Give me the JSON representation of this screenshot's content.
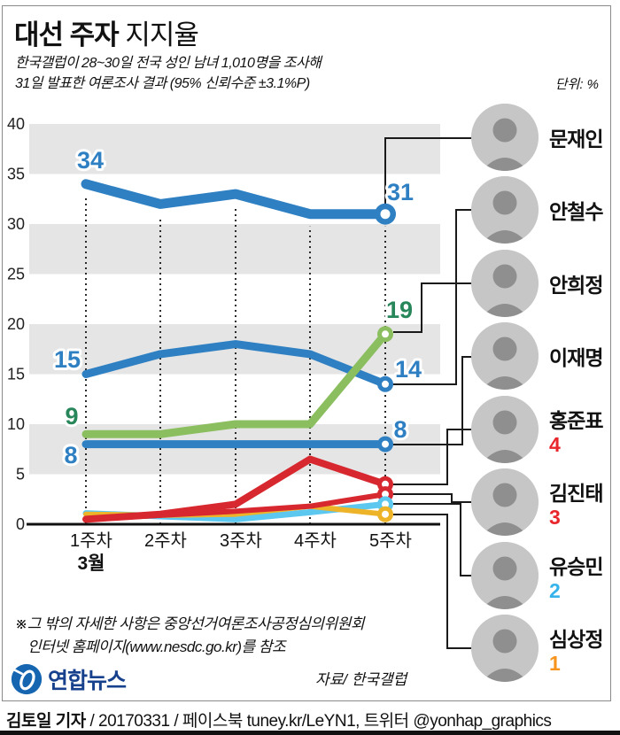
{
  "header": {
    "title_bold": "대선 주자",
    "title_light": "지지율",
    "subtitle_line1": "한국갤럽이 28~30일 전국 성인 남녀 1,010명을 조사해",
    "subtitle_line2": "31일 발표한 여론조사 결과 (95% 신뢰수준 ±3.1%P)",
    "unit": "단위: %"
  },
  "chart_data": {
    "type": "line",
    "unit": "%",
    "categories": [
      "1주차",
      "2주차",
      "3주차",
      "4주차",
      "5주차"
    ],
    "month_label": "3월",
    "ylim": [
      0,
      40
    ],
    "yticks": [
      0,
      5,
      10,
      15,
      20,
      25,
      30,
      35,
      40
    ],
    "series": [
      {
        "name": "문재인",
        "color": "#2E80C3",
        "values": [
          34,
          32,
          33,
          31,
          31
        ],
        "first_label": "34",
        "last_label": "31",
        "label_color": "#2E80C3"
      },
      {
        "name": "안철수",
        "color": "#2E80C3",
        "values": [
          15,
          17,
          18,
          17,
          14
        ],
        "first_label": "15",
        "last_label": "14",
        "label_color": "#2E80C3"
      },
      {
        "name": "안희정",
        "color": "#8BBE5F",
        "values": [
          9,
          9,
          10,
          10,
          19
        ],
        "first_label": "9",
        "last_label": "19",
        "label_color": "#27865A"
      },
      {
        "name": "이재명",
        "color": "#2E80C3",
        "values": [
          8,
          8,
          8,
          8,
          8
        ],
        "first_label": "8",
        "last_label": "8",
        "label_color": "#2E80C3"
      },
      {
        "name": "홍준표",
        "color": "#D8282F",
        "values": [
          0.5,
          1,
          2,
          6.5,
          4
        ]
      },
      {
        "name": "김진태",
        "color": "#D8282F",
        "values": [
          0.5,
          0.9,
          1.3,
          1.8,
          3
        ]
      },
      {
        "name": "유승민",
        "color": "#5CC8F0",
        "values": [
          1.1,
          0.8,
          0.5,
          1.2,
          2
        ]
      },
      {
        "name": "심상정",
        "color": "#EDB42A",
        "values": [
          1,
          0.9,
          1,
          1.8,
          1
        ]
      }
    ]
  },
  "candidates": [
    {
      "name": "문재인",
      "score": null,
      "score_color": null
    },
    {
      "name": "안철수",
      "score": null,
      "score_color": null
    },
    {
      "name": "안희정",
      "score": null,
      "score_color": null
    },
    {
      "name": "이재명",
      "score": null,
      "score_color": null
    },
    {
      "name": "홍준표",
      "score": "4",
      "score_color": "#E8262C"
    },
    {
      "name": "김진태",
      "score": "3",
      "score_color": "#E8262C"
    },
    {
      "name": "유승민",
      "score": "2",
      "score_color": "#35B3EA"
    },
    {
      "name": "심상정",
      "score": "1",
      "score_color": "#F7941D"
    }
  ],
  "footnote": {
    "line1": "※그 밖의 자세한 사항은 중앙선거여론조사공정심의위원회",
    "line2": "인터넷 홈페이지(www.nesdc.go.kr)를 참조"
  },
  "logo_text": "연합뉴스",
  "source": "자료/ 한국갤럽",
  "footer": {
    "reporter": "김토일 기자",
    "rest": " / 20170331 / 페이스북 tuney.kr/LeYN1, 트위터 @yonhap_graphics"
  }
}
